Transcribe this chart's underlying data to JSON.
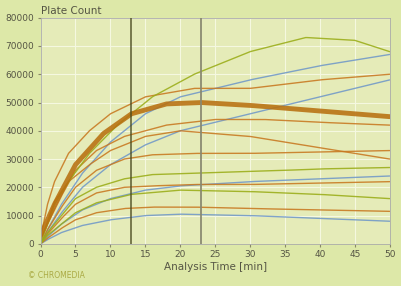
{
  "title": "Plate Count",
  "xlabel": "Analysis Time [min]",
  "xlim": [
    0,
    50
  ],
  "ylim": [
    0,
    80000
  ],
  "xticks": [
    0,
    5,
    10,
    15,
    20,
    25,
    30,
    35,
    40,
    45,
    50
  ],
  "yticks": [
    0,
    10000,
    20000,
    30000,
    40000,
    50000,
    60000,
    70000,
    80000
  ],
  "bg_color": "#dde8a8",
  "plot_bg_color": "#e5ebb8",
  "grid_color": "#f5f8e0",
  "vline1": 13,
  "vline2": 23,
  "vline1_color": "#4a4a20",
  "vline2_color": "#888870",
  "watermark": "© CHROMEDIA",
  "curves": [
    {
      "x": [
        0,
        1,
        3,
        6,
        10,
        15,
        20,
        30,
        40,
        50
      ],
      "y": [
        0,
        1500,
        4000,
        6500,
        8500,
        10000,
        10500,
        10000,
        9000,
        8000
      ],
      "color": "#7098c8",
      "lw": 1.0
    },
    {
      "x": [
        0,
        1,
        3,
        6,
        10,
        15,
        20,
        30,
        40,
        50
      ],
      "y": [
        0,
        2500,
        7000,
        12000,
        16000,
        19000,
        20500,
        22000,
        23000,
        24000
      ],
      "color": "#7098c8",
      "lw": 1.0
    },
    {
      "x": [
        0,
        1,
        3,
        6,
        10,
        15,
        20,
        30,
        40,
        50
      ],
      "y": [
        0,
        4000,
        11000,
        20000,
        28000,
        35000,
        40000,
        46000,
        52000,
        58000
      ],
      "color": "#7098c8",
      "lw": 1.0
    },
    {
      "x": [
        0,
        1,
        3,
        6,
        10,
        15,
        20,
        30,
        40,
        50
      ],
      "y": [
        0,
        5000,
        14000,
        25000,
        36000,
        46000,
        52000,
        58000,
        63000,
        67000
      ],
      "color": "#7098c8",
      "lw": 1.0
    },
    {
      "x": [
        0,
        1,
        3,
        5,
        8,
        12,
        16,
        22,
        30,
        40,
        50
      ],
      "y": [
        0,
        2000,
        5500,
        8500,
        11000,
        12500,
        13000,
        13000,
        12500,
        12000,
        11500
      ],
      "color": "#c87820",
      "lw": 1.0
    },
    {
      "x": [
        0,
        1,
        3,
        5,
        8,
        12,
        16,
        22,
        30,
        40,
        50
      ],
      "y": [
        0,
        3500,
        9000,
        14000,
        18000,
        20000,
        20500,
        21000,
        21000,
        21500,
        22000
      ],
      "color": "#c87820",
      "lw": 1.0
    },
    {
      "x": [
        0,
        1,
        3,
        5,
        8,
        12,
        16,
        22,
        30,
        40,
        50
      ],
      "y": [
        0,
        5000,
        13000,
        20000,
        26000,
        30000,
        31500,
        32000,
        32000,
        32500,
        33000
      ],
      "color": "#c87820",
      "lw": 1.0
    },
    {
      "x": [
        0,
        1,
        3,
        5,
        8,
        12,
        18,
        25,
        32,
        40,
        50
      ],
      "y": [
        1000,
        7000,
        17000,
        26000,
        33000,
        38000,
        42000,
        44000,
        44000,
        43000,
        42000
      ],
      "color": "#c87820",
      "lw": 1.0
    },
    {
      "x": [
        0,
        1,
        2,
        4,
        7,
        10,
        15,
        20,
        30,
        40,
        50
      ],
      "y": [
        1000,
        8000,
        15000,
        22000,
        28000,
        33000,
        38000,
        40000,
        38000,
        34000,
        30000
      ],
      "color": "#c87820",
      "lw": 1.0
    },
    {
      "x": [
        0,
        1,
        2,
        4,
        7,
        10,
        15,
        22,
        30,
        40,
        50
      ],
      "y": [
        2000,
        14000,
        22000,
        32000,
        40000,
        46000,
        52000,
        55000,
        55000,
        58000,
        60000
      ],
      "color": "#c87820",
      "lw": 1.0
    },
    {
      "x": [
        0,
        1,
        3,
        5,
        8,
        12,
        16,
        22,
        28,
        35,
        40,
        50
      ],
      "y": [
        0,
        4000,
        10000,
        16000,
        20000,
        23000,
        24500,
        25000,
        25500,
        26000,
        26500,
        27000
      ],
      "color": "#9aad18",
      "lw": 1.0
    },
    {
      "x": [
        0,
        1,
        2,
        4,
        7,
        11,
        16,
        22,
        30,
        38,
        45,
        50
      ],
      "y": [
        0,
        7000,
        14000,
        22000,
        32000,
        42000,
        52000,
        60000,
        68000,
        73000,
        72000,
        68000
      ],
      "color": "#9aad18",
      "lw": 1.0
    },
    {
      "x": [
        0,
        1,
        3,
        5,
        8,
        13,
        20,
        30,
        40,
        50
      ],
      "y": [
        0,
        3000,
        7000,
        11000,
        14500,
        17500,
        19000,
        18500,
        17500,
        16000
      ],
      "color": "#9aad18",
      "lw": 1.0
    },
    {
      "x": [
        0,
        2,
        5,
        9,
        13,
        18,
        23,
        30,
        40,
        50
      ],
      "y": [
        3000,
        14000,
        28000,
        39000,
        46000,
        49500,
        50000,
        49000,
        47000,
        45000
      ],
      "color": "#b87010",
      "lw": 3.5
    }
  ]
}
